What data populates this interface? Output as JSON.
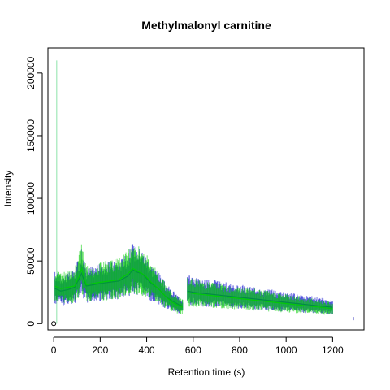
{
  "chart_data": {
    "type": "line",
    "title": "Methylmalonyl carnitine",
    "xlabel": "Retention time (s)",
    "ylabel": "Intensity",
    "xlim": [
      -25,
      1335
    ],
    "ylim": [
      -5000,
      220000
    ],
    "xticks": [
      0,
      200,
      400,
      600,
      800,
      1000,
      1200
    ],
    "yticks": [
      0,
      50000,
      100000,
      150000,
      200000
    ],
    "xtick_labels": [
      "0",
      "200",
      "400",
      "600",
      "800",
      "1000",
      "1200"
    ],
    "ytick_labels": [
      "0",
      "50000",
      "100000",
      "150000",
      "200000"
    ],
    "grid": false,
    "legend": "none",
    "series": [
      {
        "color": "#0000CD",
        "segments": [
          {
            "x": [
              5,
              30,
              60,
              90,
              110,
              120,
              140,
              170,
              200,
              240,
              280,
              320,
              340,
              360,
              380,
              400,
              420,
              450,
              480,
              510,
              540,
              555
            ],
            "y": [
              28000,
              26000,
              27000,
              29000,
              36000,
              40000,
              30000,
              31000,
              32000,
              33000,
              34000,
              38000,
              43000,
              41000,
              40000,
              36000,
              32000,
              28000,
              22000,
              18000,
              15000,
              14000
            ]
          },
          {
            "x": [
              575,
              600,
              650,
              700,
              750,
              800,
              850,
              900,
              950,
              1000,
              1050,
              1100,
              1150,
              1200
            ],
            "y": [
              26000,
              25000,
              24000,
              23000,
              22000,
              21000,
              20000,
              19000,
              18000,
              17000,
              16000,
              15000,
              14000,
              13000
            ]
          }
        ]
      },
      {
        "color": "#00CD00",
        "segments": [
          {
            "x": [
              5,
              30,
              60,
              90,
              110,
              120,
              140,
              170,
              200,
              240,
              280,
              320,
              340,
              360,
              380,
              400,
              420,
              450,
              480,
              510,
              540,
              555
            ],
            "y": [
              30000,
              28000,
              29000,
              30000,
              38000,
              44000,
              31000,
              32000,
              33000,
              34000,
              35000,
              40000,
              44000,
              42000,
              40000,
              37000,
              33000,
              28000,
              22000,
              17000,
              14000,
              13000
            ]
          },
          {
            "x": [
              575,
              600,
              650,
              700,
              750,
              800,
              850,
              900,
              950,
              1000,
              1050,
              1100,
              1150,
              1200
            ],
            "y": [
              25000,
              24000,
              23000,
              22000,
              21000,
              20000,
              19000,
              18000,
              17000,
              16000,
              15000,
              14000,
              13000,
              12000
            ]
          }
        ]
      }
    ],
    "spike": {
      "x": 13,
      "y": 210000
    },
    "open_point": {
      "x": 0,
      "y": 0
    },
    "isolated_point": {
      "x": 1290,
      "y": 4000
    }
  }
}
